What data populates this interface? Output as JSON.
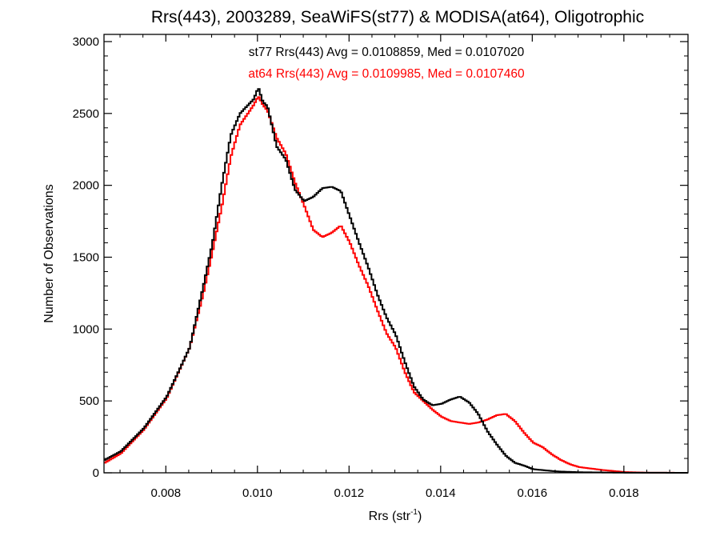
{
  "chart_data": {
    "type": "line",
    "title": "Rrs(443), 2003289, SeaWiFS(st77) & MODISA(at64), Oligotrophic",
    "xlabel": "Rrs (str",
    "xlabel_sup": "-1",
    "xlabel_close": ")",
    "ylabel": "Number of Observations",
    "xlim": [
      0.00665,
      0.0194
    ],
    "ylim": [
      0,
      3050
    ],
    "xticks": [
      "0.008",
      "0.010",
      "0.012",
      "0.014",
      "0.016",
      "0.018"
    ],
    "xtick_values": [
      0.008,
      0.01,
      0.012,
      0.014,
      0.016,
      0.018
    ],
    "yticks": [
      "0",
      "500",
      "1000",
      "1500",
      "2000",
      "2500",
      "3000"
    ],
    "ytick_values": [
      0,
      500,
      1000,
      1500,
      2000,
      2500,
      3000
    ],
    "series": [
      {
        "name": "st77",
        "color": "#000000",
        "annotation": "st77 Rrs(443) Avg = 0.0108859, Med = 0.0107020",
        "points": [
          [
            0.00665,
            90
          ],
          [
            0.007,
            150
          ],
          [
            0.0075,
            310
          ],
          [
            0.008,
            530
          ],
          [
            0.0085,
            870
          ],
          [
            0.0088,
            1300
          ],
          [
            0.009,
            1600
          ],
          [
            0.0092,
            2000
          ],
          [
            0.0094,
            2350
          ],
          [
            0.0096,
            2500
          ],
          [
            0.0099,
            2600
          ],
          [
            0.01,
            2680
          ],
          [
            0.0101,
            2580
          ],
          [
            0.0102,
            2550
          ],
          [
            0.0104,
            2270
          ],
          [
            0.0106,
            2180
          ],
          [
            0.0108,
            1970
          ],
          [
            0.011,
            1890
          ],
          [
            0.0112,
            1920
          ],
          [
            0.0114,
            1980
          ],
          [
            0.0116,
            1990
          ],
          [
            0.0118,
            1960
          ],
          [
            0.012,
            1780
          ],
          [
            0.0122,
            1600
          ],
          [
            0.0124,
            1430
          ],
          [
            0.0126,
            1240
          ],
          [
            0.0128,
            1080
          ],
          [
            0.013,
            960
          ],
          [
            0.0132,
            770
          ],
          [
            0.0134,
            600
          ],
          [
            0.0136,
            510
          ],
          [
            0.0138,
            470
          ],
          [
            0.014,
            480
          ],
          [
            0.0142,
            510
          ],
          [
            0.0144,
            530
          ],
          [
            0.0146,
            490
          ],
          [
            0.0148,
            410
          ],
          [
            0.015,
            290
          ],
          [
            0.0152,
            200
          ],
          [
            0.0154,
            120
          ],
          [
            0.0156,
            70
          ],
          [
            0.0158,
            50
          ],
          [
            0.016,
            25
          ],
          [
            0.0165,
            10
          ],
          [
            0.017,
            4
          ],
          [
            0.018,
            1
          ],
          [
            0.0194,
            0
          ]
        ]
      },
      {
        "name": "at64",
        "color": "#ff0000",
        "annotation": "at64 Rrs(443) Avg = 0.0109985, Med = 0.0107460",
        "points": [
          [
            0.00665,
            70
          ],
          [
            0.007,
            135
          ],
          [
            0.0075,
            300
          ],
          [
            0.008,
            520
          ],
          [
            0.0085,
            870
          ],
          [
            0.0088,
            1250
          ],
          [
            0.009,
            1540
          ],
          [
            0.0092,
            1850
          ],
          [
            0.0094,
            2200
          ],
          [
            0.0096,
            2420
          ],
          [
            0.0099,
            2560
          ],
          [
            0.01,
            2620
          ],
          [
            0.0101,
            2560
          ],
          [
            0.0102,
            2520
          ],
          [
            0.0104,
            2330
          ],
          [
            0.0106,
            2220
          ],
          [
            0.0108,
            2020
          ],
          [
            0.011,
            1860
          ],
          [
            0.0112,
            1690
          ],
          [
            0.0114,
            1640
          ],
          [
            0.0116,
            1670
          ],
          [
            0.0118,
            1720
          ],
          [
            0.012,
            1600
          ],
          [
            0.0122,
            1440
          ],
          [
            0.0124,
            1300
          ],
          [
            0.0126,
            1130
          ],
          [
            0.0128,
            970
          ],
          [
            0.013,
            870
          ],
          [
            0.0132,
            700
          ],
          [
            0.0134,
            560
          ],
          [
            0.0136,
            500
          ],
          [
            0.0138,
            440
          ],
          [
            0.014,
            390
          ],
          [
            0.0142,
            360
          ],
          [
            0.0144,
            350
          ],
          [
            0.0146,
            340
          ],
          [
            0.0148,
            350
          ],
          [
            0.015,
            370
          ],
          [
            0.0152,
            400
          ],
          [
            0.0154,
            410
          ],
          [
            0.0156,
            360
          ],
          [
            0.0158,
            280
          ],
          [
            0.016,
            210
          ],
          [
            0.0162,
            180
          ],
          [
            0.0164,
            130
          ],
          [
            0.0166,
            90
          ],
          [
            0.0168,
            60
          ],
          [
            0.017,
            40
          ],
          [
            0.0175,
            20
          ],
          [
            0.018,
            5
          ],
          [
            0.0185,
            1
          ],
          [
            0.0194,
            0
          ]
        ]
      }
    ]
  }
}
